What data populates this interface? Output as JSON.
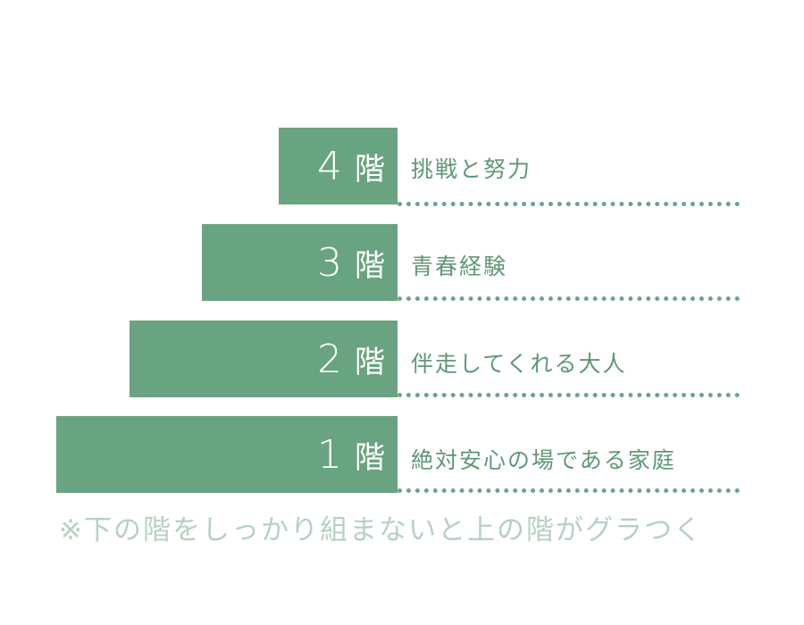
{
  "colors": {
    "bar": "#68a47f",
    "label": "#5e9976",
    "dots": "#6aa682",
    "note": "#b5d2c1"
  },
  "floors": [
    {
      "num": "4",
      "unit": "階",
      "label": "挑戦と努力"
    },
    {
      "num": "3",
      "unit": "階",
      "label": "青春経験"
    },
    {
      "num": "2",
      "unit": "階",
      "label": "伴走してくれる大人"
    },
    {
      "num": "1",
      "unit": "階",
      "label": "絶対安心の場である家庭"
    }
  ],
  "note": "※下の階をしっかり組まないと上の階がグラつく"
}
